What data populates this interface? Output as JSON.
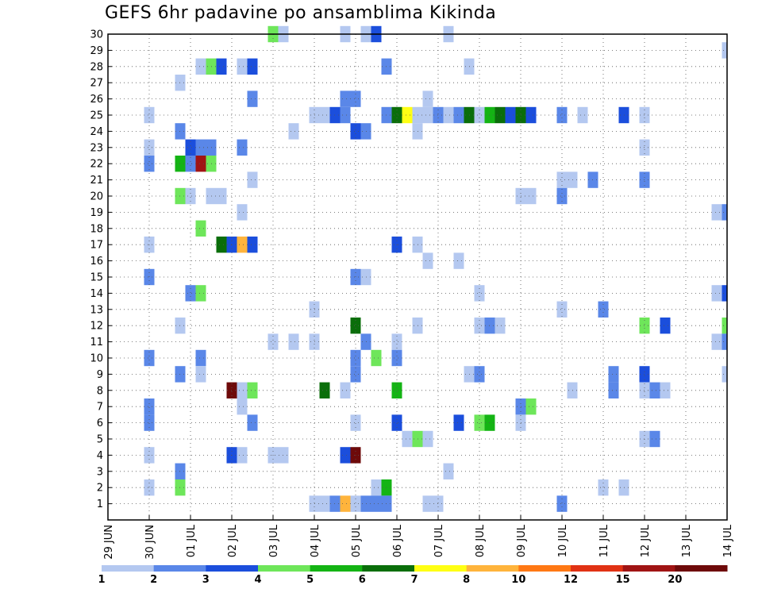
{
  "chart_data": {
    "type": "heatmap",
    "title": "GEFS 6hr padavine po ansamblima Kikinda",
    "xlabel": "",
    "ylabel": "",
    "x_ticks": [
      "29 JUN",
      "30 JUN",
      "01 JUL",
      "02 JUL",
      "03 JUL",
      "04 JUL",
      "05 JUL",
      "06 JUL",
      "07 JUL",
      "08 JUL",
      "09 JUL",
      "10 JUL",
      "11 JUL",
      "12 JUL",
      "13 JUL",
      "14 JUL"
    ],
    "y_ticks": [
      "1",
      "2",
      "3",
      "4",
      "5",
      "6",
      "7",
      "8",
      "9",
      "10",
      "11",
      "12",
      "13",
      "14",
      "15",
      "16",
      "17",
      "18",
      "19",
      "20",
      "21",
      "22",
      "23",
      "24",
      "25",
      "26",
      "27",
      "28",
      "29",
      "30"
    ],
    "ylim": [
      0,
      30
    ],
    "xlim_days": [
      0,
      15
    ],
    "cell_hours": 6,
    "grid": true,
    "legend_position": "bottom",
    "levels": [
      "1",
      "2",
      "3",
      "4",
      "5",
      "6",
      "7",
      "8",
      "10",
      "12",
      "15",
      "20"
    ],
    "colors": [
      "#b4c8f0",
      "#5a87e8",
      "#1b4edc",
      "#6ee65a",
      "#14b414",
      "#0a6e0a",
      "#ffff14",
      "#ffb43c",
      "#ff7814",
      "#e13214",
      "#a01414",
      "#6e0a0a"
    ],
    "cells": [
      [
        4.25,
        30,
        1
      ],
      [
        4.0,
        30,
        4
      ],
      [
        5.75,
        30,
        1
      ],
      [
        6.25,
        30,
        1
      ],
      [
        6.5,
        30,
        3
      ],
      [
        8.25,
        30,
        1
      ],
      [
        15.0,
        29,
        1
      ],
      [
        2.25,
        28,
        1
      ],
      [
        2.5,
        28,
        4
      ],
      [
        2.75,
        28,
        3
      ],
      [
        3.25,
        28,
        1
      ],
      [
        3.5,
        28,
        3
      ],
      [
        6.75,
        28,
        2
      ],
      [
        8.75,
        28,
        1
      ],
      [
        1.75,
        27,
        1
      ],
      [
        3.5,
        26,
        2
      ],
      [
        5.75,
        26,
        2
      ],
      [
        6.0,
        26,
        2
      ],
      [
        7.75,
        26,
        1
      ],
      [
        1.0,
        25,
        1
      ],
      [
        5.0,
        25,
        1
      ],
      [
        5.25,
        25,
        1
      ],
      [
        5.5,
        25,
        3
      ],
      [
        5.75,
        25,
        2
      ],
      [
        6.75,
        25,
        2
      ],
      [
        7.0,
        25,
        6
      ],
      [
        7.25,
        25,
        7
      ],
      [
        7.5,
        25,
        1
      ],
      [
        7.75,
        25,
        1
      ],
      [
        8.0,
        25,
        2
      ],
      [
        8.25,
        25,
        1
      ],
      [
        8.5,
        25,
        2
      ],
      [
        8.75,
        25,
        6
      ],
      [
        9.0,
        25,
        1
      ],
      [
        9.25,
        25,
        5
      ],
      [
        9.5,
        25,
        6
      ],
      [
        9.75,
        25,
        3
      ],
      [
        10.0,
        25,
        6
      ],
      [
        10.25,
        25,
        3
      ],
      [
        11.0,
        25,
        2
      ],
      [
        11.5,
        25,
        1
      ],
      [
        12.5,
        25,
        3
      ],
      [
        13.0,
        25,
        1
      ],
      [
        1.75,
        24,
        2
      ],
      [
        4.5,
        24,
        1
      ],
      [
        6.0,
        24,
        3
      ],
      [
        6.25,
        24,
        2
      ],
      [
        7.5,
        24,
        1
      ],
      [
        1.0,
        23,
        1
      ],
      [
        2.0,
        23,
        3
      ],
      [
        2.25,
        23,
        2
      ],
      [
        2.5,
        23,
        2
      ],
      [
        3.25,
        23,
        2
      ],
      [
        13.0,
        23,
        1
      ],
      [
        1.0,
        22,
        2
      ],
      [
        1.75,
        22,
        5
      ],
      [
        2.25,
        22,
        11
      ],
      [
        2.0,
        22,
        2
      ],
      [
        2.5,
        22,
        4
      ],
      [
        3.5,
        21,
        1
      ],
      [
        11.25,
        21,
        1
      ],
      [
        11.0,
        21,
        1
      ],
      [
        11.75,
        21,
        2
      ],
      [
        13.0,
        21,
        2
      ],
      [
        1.75,
        20,
        4
      ],
      [
        2.0,
        20,
        1
      ],
      [
        2.75,
        20,
        1
      ],
      [
        2.5,
        20,
        1
      ],
      [
        10.0,
        20,
        1
      ],
      [
        10.25,
        20,
        1
      ],
      [
        11.0,
        20,
        2
      ],
      [
        3.25,
        19,
        1
      ],
      [
        14.75,
        19,
        1
      ],
      [
        15.0,
        19,
        2
      ],
      [
        2.25,
        18,
        4
      ],
      [
        1.0,
        17,
        1
      ],
      [
        2.75,
        17,
        6
      ],
      [
        3.0,
        17,
        3
      ],
      [
        3.25,
        17,
        8
      ],
      [
        3.5,
        17,
        3
      ],
      [
        7.0,
        17,
        3
      ],
      [
        7.5,
        17,
        1
      ],
      [
        7.75,
        16,
        1
      ],
      [
        8.5,
        16,
        1
      ],
      [
        1.0,
        15,
        2
      ],
      [
        6.0,
        15,
        2
      ],
      [
        6.25,
        15,
        1
      ],
      [
        2.0,
        14,
        2
      ],
      [
        2.25,
        14,
        4
      ],
      [
        9.0,
        14,
        1
      ],
      [
        14.75,
        14,
        1
      ],
      [
        15.0,
        14,
        3
      ],
      [
        5.0,
        13,
        1
      ],
      [
        11.0,
        13,
        1
      ],
      [
        12.0,
        13,
        2
      ],
      [
        1.75,
        12,
        1
      ],
      [
        6.0,
        12,
        6
      ],
      [
        7.5,
        12,
        1
      ],
      [
        9.0,
        12,
        1
      ],
      [
        9.25,
        12,
        2
      ],
      [
        9.5,
        12,
        1
      ],
      [
        13.0,
        12,
        4
      ],
      [
        13.5,
        12,
        3
      ],
      [
        15.0,
        12,
        4
      ],
      [
        4.0,
        11,
        1
      ],
      [
        4.5,
        11,
        1
      ],
      [
        5.0,
        11,
        1
      ],
      [
        6.25,
        11,
        2
      ],
      [
        7.0,
        11,
        1
      ],
      [
        14.75,
        11,
        1
      ],
      [
        15.0,
        11,
        2
      ],
      [
        1.0,
        10,
        2
      ],
      [
        2.25,
        10,
        2
      ],
      [
        6.0,
        10,
        2
      ],
      [
        6.5,
        10,
        4
      ],
      [
        7.0,
        10,
        2
      ],
      [
        1.75,
        9,
        2
      ],
      [
        2.25,
        9,
        1
      ],
      [
        6.0,
        9,
        2
      ],
      [
        8.75,
        9,
        1
      ],
      [
        9.0,
        9,
        2
      ],
      [
        15.0,
        9,
        1
      ],
      [
        12.25,
        8,
        2
      ],
      [
        12.25,
        9,
        2
      ],
      [
        13.0,
        9,
        3
      ],
      [
        3.0,
        8,
        12
      ],
      [
        3.25,
        8,
        1
      ],
      [
        3.5,
        8,
        4
      ],
      [
        5.25,
        8,
        6
      ],
      [
        5.75,
        8,
        1
      ],
      [
        7.0,
        8,
        5
      ],
      [
        11.25,
        8,
        1
      ],
      [
        13.0,
        8,
        1
      ],
      [
        13.25,
        8,
        2
      ],
      [
        13.5,
        8,
        1
      ],
      [
        1.0,
        7,
        2
      ],
      [
        1.0,
        6,
        2
      ],
      [
        3.25,
        7,
        1
      ],
      [
        10.0,
        7,
        2
      ],
      [
        10.25,
        7,
        4
      ],
      [
        3.5,
        6,
        2
      ],
      [
        6.0,
        6,
        1
      ],
      [
        7.0,
        6,
        3
      ],
      [
        8.5,
        6,
        3
      ],
      [
        9.0,
        6,
        4
      ],
      [
        9.25,
        6,
        5
      ],
      [
        10.0,
        6,
        1
      ],
      [
        7.25,
        5,
        1
      ],
      [
        7.5,
        5,
        4
      ],
      [
        7.75,
        5,
        1
      ],
      [
        13.0,
        5,
        1
      ],
      [
        13.25,
        5,
        2
      ],
      [
        1.0,
        4,
        1
      ],
      [
        3.0,
        4,
        3
      ],
      [
        3.25,
        4,
        1
      ],
      [
        4.0,
        4,
        1
      ],
      [
        4.25,
        4,
        1
      ],
      [
        5.75,
        4,
        3
      ],
      [
        6.0,
        4,
        12
      ],
      [
        1.75,
        3,
        2
      ],
      [
        8.25,
        3,
        1
      ],
      [
        1.0,
        2,
        1
      ],
      [
        1.75,
        2,
        4
      ],
      [
        6.5,
        2,
        1
      ],
      [
        6.75,
        2,
        5
      ],
      [
        12.0,
        2,
        1
      ],
      [
        12.5,
        2,
        1
      ],
      [
        5.0,
        1,
        1
      ],
      [
        5.25,
        1,
        1
      ],
      [
        5.5,
        1,
        2
      ],
      [
        5.75,
        1,
        8
      ],
      [
        6.0,
        1,
        1
      ],
      [
        6.25,
        1,
        2
      ],
      [
        6.5,
        1,
        2
      ],
      [
        6.75,
        1,
        2
      ],
      [
        7.75,
        1,
        1
      ],
      [
        8.0,
        1,
        1
      ],
      [
        11.0,
        1,
        2
      ]
    ]
  }
}
